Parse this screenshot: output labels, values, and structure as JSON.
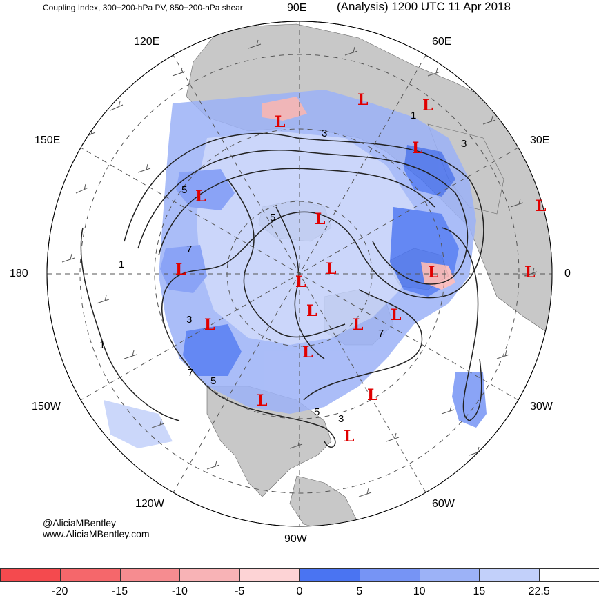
{
  "title_left": "Coupling Index, 300−200-hPa PV, 850−200-hPa shear",
  "title_right": "(Analysis) 1200 UTC 11 Apr 2018",
  "longitude_labels": [
    "90E",
    "60E",
    "30E",
    "0",
    "30W",
    "60W",
    "90W",
    "120W",
    "150W",
    "180",
    "150E",
    "120E"
  ],
  "credits": [
    "@AliciaMBentley",
    "www.AliciaMBentley.com"
  ],
  "low_symbol": "L",
  "contour_labels": [
    "1",
    "3",
    "5",
    "7"
  ],
  "colorbar": {
    "ticks": [
      "-20",
      "-15",
      "-10",
      "-5",
      "0",
      "5",
      "10",
      "15",
      "22.5"
    ],
    "colors": [
      "#f44a4e",
      "#f5676b",
      "#f68c90",
      "#f8b3b6",
      "#fdd3d5",
      "#4a74f2",
      "#7694f5",
      "#9cb2f7",
      "#c2d0fa",
      "#ffffff"
    ]
  },
  "colors": {
    "land": "#c8c8c8",
    "ocean": "#ffffff",
    "low_marker": "#e00000",
    "contour": "#222222"
  }
}
